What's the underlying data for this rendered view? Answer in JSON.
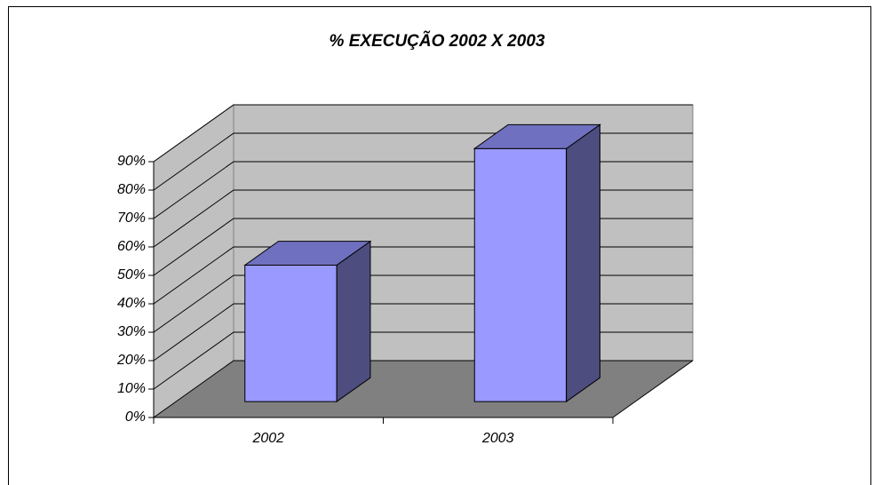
{
  "chart_data": {
    "type": "bar3d",
    "title": "% EXECUÇÃO 2002 X 2003",
    "categories": [
      "2002",
      "2003"
    ],
    "values": [
      48,
      89
    ],
    "color": "#9999ff",
    "ylim": [
      0,
      90
    ],
    "yticks": [
      {
        "value": 0,
        "label": "0%"
      },
      {
        "value": 10,
        "label": "10%"
      },
      {
        "value": 20,
        "label": "20%"
      },
      {
        "value": 30,
        "label": "30%"
      },
      {
        "value": 40,
        "label": "40%"
      },
      {
        "value": 50,
        "label": "50%"
      },
      {
        "value": 60,
        "label": "60%"
      },
      {
        "value": 70,
        "label": "70%"
      },
      {
        "value": 80,
        "label": "80%"
      },
      {
        "value": 90,
        "label": "90%"
      }
    ],
    "grid": true
  }
}
